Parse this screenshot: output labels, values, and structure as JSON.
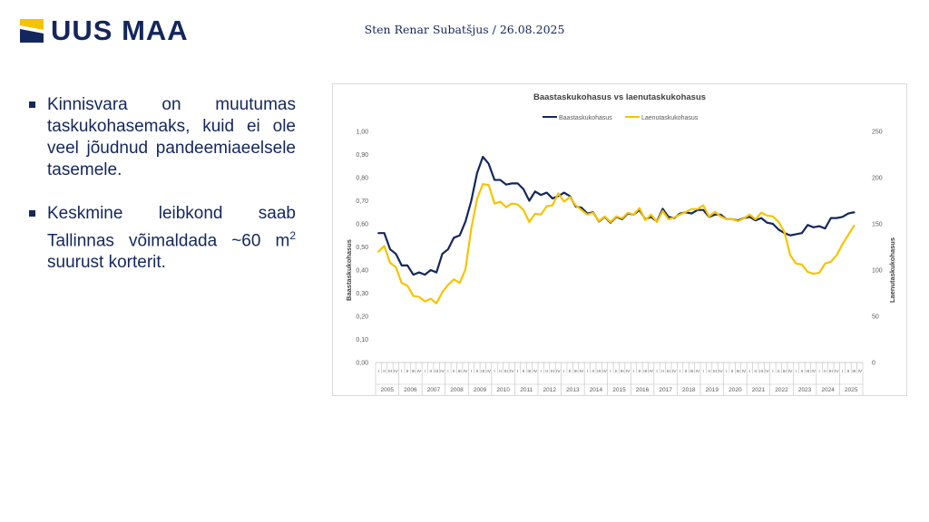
{
  "header": {
    "logo_text": "UUS MAA",
    "author_date": "Sten Renar Subatšjus / 26.08.2025",
    "logo_color": "#14275c",
    "logo_accent": "#f5c400"
  },
  "bullets": [
    {
      "text": "Kinnisvara on muutumas taskukohasemaks, kuid ei ole veel jõudnud pandeemiaeelsele tasemele."
    },
    {
      "text_before": "Keskmine leibkond saab Tallinnas võimaldada ~60 m",
      "sup": "2",
      "text_after": " suurust korterit."
    }
  ],
  "chart_data": {
    "type": "line",
    "title": "Baastaskukohasus vs laenutaskukohasus",
    "ylabel_left": "Baastaskukohasus",
    "ylabel_right": "Laenutaskukohasus",
    "ylim_left": [
      0,
      1.0
    ],
    "ylim_right": [
      0,
      250
    ],
    "yticks_left": [
      "0,00",
      "0,10",
      "0,20",
      "0,30",
      "0,40",
      "0,50",
      "0,60",
      "0,70",
      "0,80",
      "0,90",
      "1,00"
    ],
    "yticks_right": [
      "0",
      "50",
      "100",
      "150",
      "200",
      "250"
    ],
    "legend_position": "top",
    "grid": false,
    "quarter_labels": [
      "I",
      "II",
      "III",
      "IV"
    ],
    "years": [
      "2005",
      "2006",
      "2007",
      "2008",
      "2009",
      "2010",
      "2011",
      "2012",
      "2013",
      "2014",
      "2015",
      "2016",
      "2017",
      "2018",
      "2019",
      "2020",
      "2021",
      "2022",
      "2023",
      "2024",
      "2025"
    ],
    "series": [
      {
        "name": "Baastaskukohasus",
        "axis": "left",
        "color": "#14275c",
        "values": [
          0.56,
          0.56,
          0.49,
          0.47,
          0.42,
          0.42,
          0.38,
          0.39,
          0.38,
          0.4,
          0.39,
          0.47,
          0.49,
          0.54,
          0.55,
          0.61,
          0.7,
          0.82,
          0.89,
          0.86,
          0.79,
          0.79,
          0.77,
          0.775,
          0.775,
          0.75,
          0.7,
          0.74,
          0.725,
          0.735,
          0.71,
          0.72,
          0.735,
          0.72,
          0.675,
          0.67,
          0.645,
          0.65,
          0.61,
          0.63,
          0.605,
          0.63,
          0.62,
          0.645,
          0.64,
          0.66,
          0.62,
          0.63,
          0.61,
          0.665,
          0.63,
          0.625,
          0.645,
          0.65,
          0.645,
          0.66,
          0.66,
          0.63,
          0.64,
          0.64,
          0.62,
          0.62,
          0.615,
          0.625,
          0.63,
          0.615,
          0.625,
          0.605,
          0.6,
          0.575,
          0.56,
          0.55,
          0.555,
          0.56,
          0.595,
          0.585,
          0.59,
          0.58,
          0.625,
          0.625,
          0.63,
          0.645,
          0.65
        ]
      },
      {
        "name": "Laenutaskukohasus",
        "axis": "right",
        "color": "#f5c400",
        "values": [
          120,
          126,
          108,
          103,
          86,
          83,
          72,
          71,
          66,
          69,
          64,
          76,
          84,
          90,
          86,
          101,
          145,
          177,
          193,
          192,
          172,
          174,
          168,
          172,
          171,
          165,
          152,
          161,
          160,
          169,
          170,
          183,
          174,
          179,
          170,
          165,
          160,
          162,
          153,
          158,
          152,
          158,
          156,
          162,
          160,
          167,
          154,
          160,
          152,
          164,
          155,
          157,
          160,
          163,
          166,
          166,
          170,
          158,
          163,
          158,
          155,
          155,
          153,
          156,
          160,
          155,
          162,
          159,
          158,
          152,
          141,
          116,
          107,
          106,
          98,
          96,
          97,
          107,
          109,
          116,
          128,
          138,
          148
        ]
      }
    ]
  }
}
